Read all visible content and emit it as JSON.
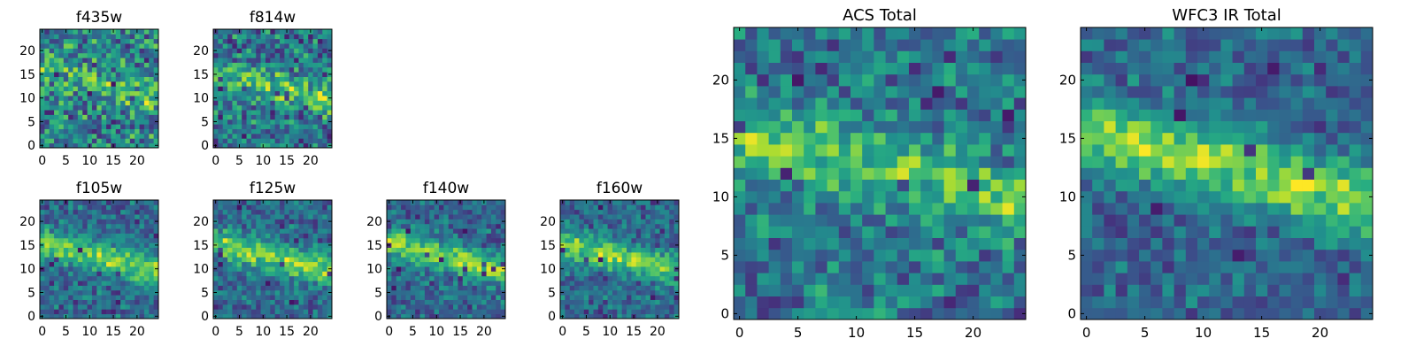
{
  "chart_data": [
    {
      "type": "heatmap",
      "title": "f435w",
      "x_ticks": [
        0,
        5,
        10,
        15,
        20
      ],
      "y_ticks": [
        0,
        5,
        10,
        15,
        20
      ],
      "xlim": [
        0,
        24
      ],
      "ylim": [
        0,
        24
      ],
      "grid_size": 25,
      "colormap": "viridis",
      "band": {
        "intensity": 0.35,
        "noise": 1.0,
        "seed": 11
      }
    },
    {
      "type": "heatmap",
      "title": "f814w",
      "x_ticks": [
        0,
        5,
        10,
        15,
        20
      ],
      "y_ticks": [
        0,
        5,
        10,
        15,
        20
      ],
      "xlim": [
        0,
        24
      ],
      "ylim": [
        0,
        24
      ],
      "grid_size": 25,
      "colormap": "viridis",
      "band": {
        "intensity": 0.55,
        "noise": 0.9,
        "seed": 23
      }
    },
    {
      "type": "heatmap",
      "title": "f105w",
      "x_ticks": [
        0,
        5,
        10,
        15,
        20
      ],
      "y_ticks": [
        0,
        5,
        10,
        15,
        20
      ],
      "xlim": [
        0,
        24
      ],
      "ylim": [
        0,
        24
      ],
      "grid_size": 25,
      "colormap": "viridis",
      "band": {
        "intensity": 0.8,
        "noise": 0.6,
        "seed": 37
      }
    },
    {
      "type": "heatmap",
      "title": "f125w",
      "x_ticks": [
        0,
        5,
        10,
        15,
        20
      ],
      "y_ticks": [
        0,
        5,
        10,
        15,
        20
      ],
      "xlim": [
        0,
        24
      ],
      "ylim": [
        0,
        24
      ],
      "grid_size": 25,
      "colormap": "viridis",
      "band": {
        "intensity": 0.8,
        "noise": 0.65,
        "seed": 41
      }
    },
    {
      "type": "heatmap",
      "title": "f140w",
      "x_ticks": [
        0,
        5,
        10,
        15,
        20
      ],
      "y_ticks": [
        0,
        5,
        10,
        15,
        20
      ],
      "xlim": [
        0,
        24
      ],
      "ylim": [
        0,
        24
      ],
      "grid_size": 25,
      "colormap": "viridis",
      "band": {
        "intensity": 0.85,
        "noise": 0.6,
        "seed": 53
      }
    },
    {
      "type": "heatmap",
      "title": "f160w",
      "x_ticks": [
        0,
        5,
        10,
        15,
        20
      ],
      "y_ticks": [
        0,
        5,
        10,
        15,
        20
      ],
      "xlim": [
        0,
        24
      ],
      "ylim": [
        0,
        24
      ],
      "grid_size": 25,
      "colormap": "viridis",
      "band": {
        "intensity": 0.85,
        "noise": 0.6,
        "seed": 67
      }
    },
    {
      "type": "heatmap",
      "title": "ACS Total",
      "x_ticks": [
        0,
        5,
        10,
        15,
        20
      ],
      "y_ticks": [
        0,
        5,
        10,
        15,
        20
      ],
      "xlim": [
        0,
        24
      ],
      "ylim": [
        0,
        24
      ],
      "grid_size": 25,
      "colormap": "viridis",
      "band": {
        "intensity": 0.6,
        "noise": 0.75,
        "seed": 79
      }
    },
    {
      "type": "heatmap",
      "title": "WFC3 IR Total",
      "x_ticks": [
        0,
        5,
        10,
        15,
        20
      ],
      "y_ticks": [
        0,
        5,
        10,
        15,
        20
      ],
      "xlim": [
        0,
        24
      ],
      "ylim": [
        0,
        24
      ],
      "grid_size": 25,
      "colormap": "viridis",
      "band": {
        "intensity": 0.9,
        "noise": 0.55,
        "seed": 97
      }
    }
  ]
}
